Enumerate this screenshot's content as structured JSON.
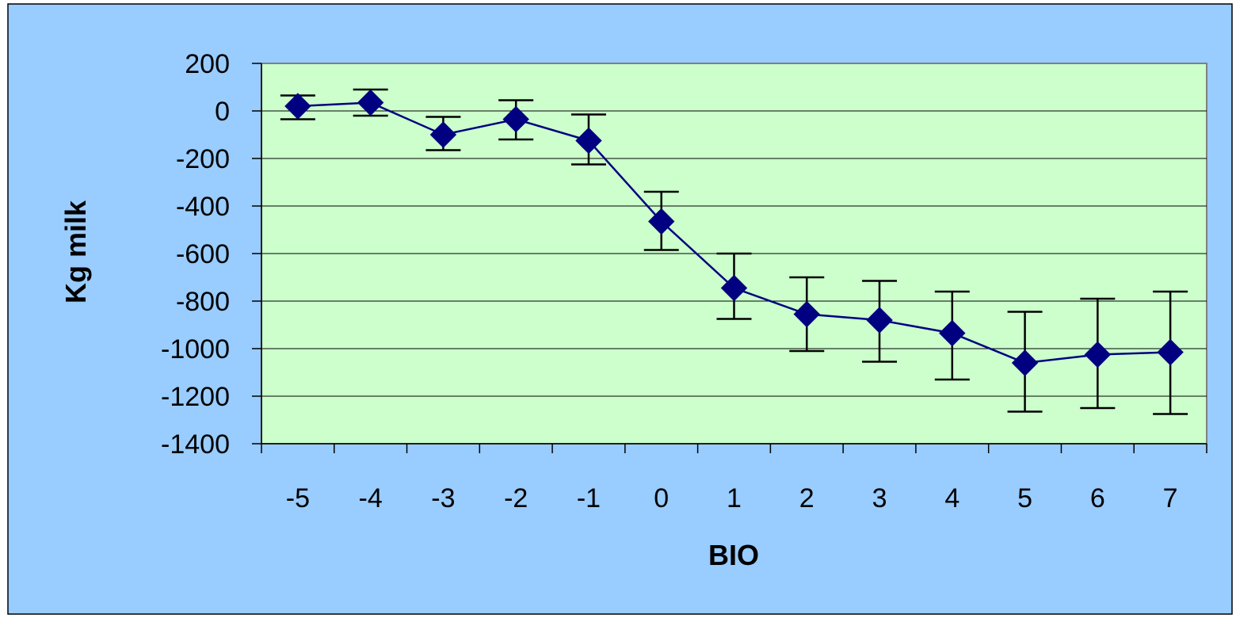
{
  "colors": {
    "outer_background": "#99ccff",
    "plot_background": "#ccffcc",
    "series": "#000080",
    "error_bars": "#000000",
    "gridlines": "#000000"
  },
  "chart_data": {
    "type": "line",
    "title": "",
    "xlabel": "BIO",
    "ylabel": "Kg milk",
    "categories": [
      "-5",
      "-4",
      "-3",
      "-2",
      "-1",
      "0",
      "1",
      "2",
      "3",
      "4",
      "5",
      "6",
      "7"
    ],
    "series": [
      {
        "marker": "diamond",
        "values": [
          20,
          35,
          -100,
          -35,
          -125,
          -465,
          -745,
          -855,
          -880,
          -935,
          -1060,
          -1025,
          -1015
        ],
        "error_high": [
          65,
          90,
          -25,
          45,
          -15,
          -340,
          -600,
          -700,
          -715,
          -760,
          -845,
          -790,
          -760
        ],
        "error_low": [
          -35,
          -20,
          -165,
          -120,
          -225,
          -585,
          -875,
          -1010,
          -1055,
          -1130,
          -1265,
          -1250,
          -1275
        ]
      }
    ],
    "ylim": [
      -1400,
      200
    ],
    "yticks": [
      "200",
      "0",
      "-200",
      "-400",
      "-600",
      "-800",
      "-1000",
      "-1200",
      "-1400"
    ],
    "ytick_values": [
      200,
      0,
      -200,
      -400,
      -600,
      -800,
      -1000,
      -1200,
      -1400
    ],
    "grid": "horizontal",
    "legend": "none"
  }
}
